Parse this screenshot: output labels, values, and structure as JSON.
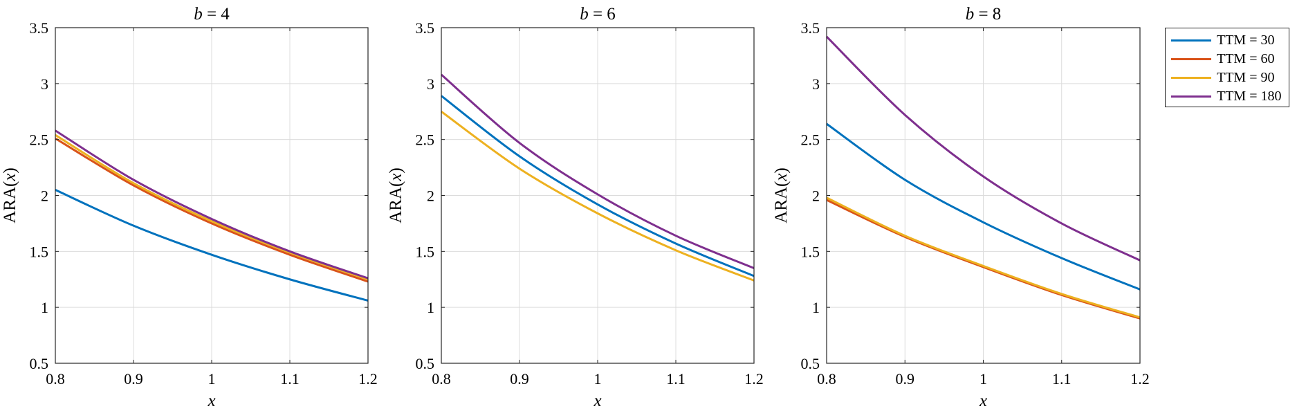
{
  "chart_data": [
    {
      "type": "line",
      "title": "b = 4",
      "xlabel": "x",
      "ylabel": "ARA(x)",
      "xlim": [
        0.8,
        1.2
      ],
      "ylim": [
        0.5,
        3.5
      ],
      "xticks": [
        "0.8",
        "0.9",
        "1",
        "1.1",
        "1.2"
      ],
      "yticks": [
        "0.5",
        "1",
        "1.5",
        "2",
        "2.5",
        "3",
        "3.5"
      ],
      "grid": true,
      "x": [
        0.8,
        0.9,
        1.0,
        1.1,
        1.2
      ],
      "series": [
        {
          "name": "TTM = 30",
          "values": [
            2.05,
            1.73,
            1.47,
            1.25,
            1.06
          ]
        },
        {
          "name": "TTM = 60",
          "values": [
            2.51,
            2.09,
            1.75,
            1.47,
            1.23
          ]
        },
        {
          "name": "TTM = 90",
          "values": [
            2.54,
            2.11,
            1.77,
            1.49,
            1.25
          ]
        },
        {
          "name": "TTM = 180",
          "values": [
            2.58,
            2.14,
            1.79,
            1.5,
            1.26
          ]
        }
      ]
    },
    {
      "type": "line",
      "title": "b = 6",
      "xlabel": "x",
      "ylabel": "ARA(x)",
      "xlim": [
        0.8,
        1.2
      ],
      "ylim": [
        0.5,
        3.5
      ],
      "xticks": [
        "0.8",
        "0.9",
        "1",
        "1.1",
        "1.2"
      ],
      "yticks": [
        "0.5",
        "1",
        "1.5",
        "2",
        "2.5",
        "3",
        "3.5"
      ],
      "grid": true,
      "x": [
        0.8,
        0.9,
        1.0,
        1.1,
        1.2
      ],
      "series": [
        {
          "name": "TTM = 30",
          "values": [
            2.89,
            2.35,
            1.92,
            1.57,
            1.28
          ]
        },
        {
          "name": "TTM = 90",
          "values": [
            2.75,
            2.24,
            1.84,
            1.51,
            1.24
          ]
        },
        {
          "name": "TTM = 180",
          "values": [
            3.08,
            2.47,
            2.01,
            1.64,
            1.35
          ]
        }
      ]
    },
    {
      "type": "line",
      "title": "b = 8",
      "xlabel": "x",
      "ylabel": "ARA(x)",
      "xlim": [
        0.8,
        1.2
      ],
      "ylim": [
        0.5,
        3.5
      ],
      "xticks": [
        "0.8",
        "0.9",
        "1",
        "1.1",
        "1.2"
      ],
      "yticks": [
        "0.5",
        "1",
        "1.5",
        "2",
        "2.5",
        "3",
        "3.5"
      ],
      "grid": true,
      "x": [
        0.8,
        0.9,
        1.0,
        1.1,
        1.2
      ],
      "series": [
        {
          "name": "TTM = 30",
          "values": [
            2.64,
            2.14,
            1.76,
            1.44,
            1.16
          ]
        },
        {
          "name": "TTM = 60",
          "values": [
            1.96,
            1.63,
            1.36,
            1.11,
            0.9
          ]
        },
        {
          "name": "TTM = 90",
          "values": [
            1.98,
            1.64,
            1.37,
            1.12,
            0.91
          ]
        },
        {
          "name": "TTM = 180",
          "values": [
            3.42,
            2.72,
            2.17,
            1.75,
            1.42
          ]
        }
      ]
    }
  ],
  "legend": {
    "placement": "right, outside plots",
    "entries": [
      {
        "label": "TTM = 30",
        "color": "#0072BD"
      },
      {
        "label": "TTM = 60",
        "color": "#D95319"
      },
      {
        "label": "TTM = 90",
        "color": "#EDB120"
      },
      {
        "label": "TTM = 180",
        "color": "#7E2F8E"
      }
    ]
  },
  "colors": {
    "TTM = 30": "#0072BD",
    "TTM = 60": "#D95319",
    "TTM = 90": "#EDB120",
    "TTM = 180": "#7E2F8E",
    "grid": "#dcdcdc",
    "axis": "#262626"
  }
}
